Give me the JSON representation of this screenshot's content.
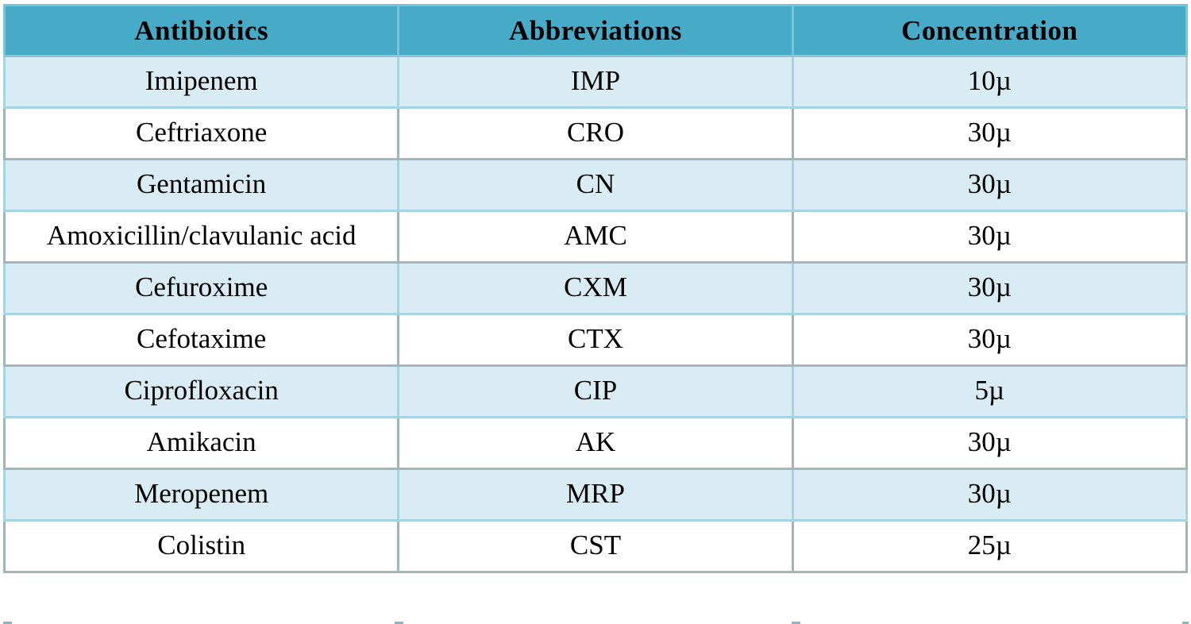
{
  "table": {
    "columns": [
      {
        "label": "Antibiotics"
      },
      {
        "label": "Abbreviations"
      },
      {
        "label": "Concentration"
      }
    ],
    "rows": [
      {
        "antibiotic": "Imipenem",
        "abbreviation": "IMP",
        "concentration": "10µ"
      },
      {
        "antibiotic": "Ceftriaxone",
        "abbreviation": "CRO",
        "concentration": "30µ"
      },
      {
        "antibiotic": "Gentamicin",
        "abbreviation": "CN",
        "concentration": "30µ"
      },
      {
        "antibiotic": "Amoxicillin/clavulanic acid",
        "abbreviation": "AMC",
        "concentration": "30µ"
      },
      {
        "antibiotic": "Cefuroxime",
        "abbreviation": "CXM",
        "concentration": "30µ"
      },
      {
        "antibiotic": "Cefotaxime",
        "abbreviation": "CTX",
        "concentration": "30µ"
      },
      {
        "antibiotic": "Ciprofloxacin",
        "abbreviation": "CIP",
        "concentration": "5µ"
      },
      {
        "antibiotic": "Amikacin",
        "abbreviation": "AK",
        "concentration": "30µ"
      },
      {
        "antibiotic": "Meropenem",
        "abbreviation": "MRP",
        "concentration": "30µ"
      },
      {
        "antibiotic": "Colistin",
        "abbreviation": "CST",
        "concentration": "25µ"
      }
    ]
  },
  "chart_data": {
    "type": "table",
    "title": "",
    "columns": [
      "Antibiotics",
      "Abbreviations",
      "Concentration"
    ],
    "rows": [
      [
        "Imipenem",
        "IMP",
        "10µ"
      ],
      [
        "Ceftriaxone",
        "CRO",
        "30µ"
      ],
      [
        "Gentamicin",
        "CN",
        "30µ"
      ],
      [
        "Amoxicillin/clavulanic acid",
        "AMC",
        "30µ"
      ],
      [
        "Cefuroxime",
        "CXM",
        "30µ"
      ],
      [
        "Cefotaxime",
        "CTX",
        "30µ"
      ],
      [
        "Ciprofloxacin",
        "CIP",
        "5µ"
      ],
      [
        "Amikacin",
        "AK",
        "30µ"
      ],
      [
        "Meropenem",
        "MRP",
        "30µ"
      ],
      [
        "Colistin",
        "CST",
        "25µ"
      ]
    ]
  },
  "colors": {
    "header_bg": "#47ABC8",
    "header_border": "#77C3D8",
    "row_even_bg": "#D9ECF4",
    "row_odd_bg": "#FFFFFF",
    "even_border": "#A5D4E2",
    "odd_border_v": "#9FB4BD",
    "odd_border_h": "#A4B5BC",
    "fragment": "#8EB4C0",
    "text": "#000000"
  }
}
